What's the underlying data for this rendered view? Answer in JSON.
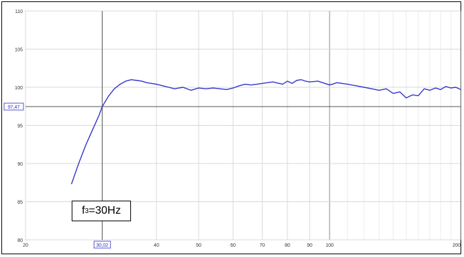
{
  "chart_data": {
    "type": "line",
    "title": "",
    "xlabel": "",
    "ylabel": "",
    "x_scale": "log",
    "xlim": [
      20,
      200
    ],
    "ylim": [
      80,
      110
    ],
    "grid": true,
    "x_ticks": [
      "20",
      "30,02",
      "40",
      "50",
      "60",
      "70",
      "80",
      "90",
      "100",
      "200"
    ],
    "y_ticks": [
      "80",
      "85",
      "90",
      "95",
      "97,47",
      "100",
      "105",
      "110"
    ],
    "cursor": {
      "x": 30.02,
      "y": 97.47,
      "x_label": "30,02",
      "y_label": "97,47"
    },
    "annotation": {
      "prefix": "f",
      "sub": "3",
      "text": "=30Hz"
    },
    "series": [
      {
        "color": "#3333cc",
        "x": [
          25.5,
          26.5,
          27.5,
          28.5,
          29.5,
          30.02,
          31,
          32,
          33,
          34,
          35,
          36,
          37,
          38,
          40,
          42,
          44,
          46,
          48,
          50,
          52,
          54,
          56,
          58,
          60,
          62,
          64,
          66,
          70,
          74,
          78,
          80,
          82,
          84,
          86,
          88,
          90,
          94,
          100,
          104,
          110,
          115,
          120,
          125,
          130,
          135,
          140,
          145,
          150,
          155,
          160,
          165,
          170,
          175,
          180,
          185,
          190,
          195,
          200
        ],
        "y": [
          87.3,
          90.0,
          92.4,
          94.4,
          96.3,
          97.47,
          98.8,
          99.8,
          100.4,
          100.8,
          101.0,
          100.9,
          100.8,
          100.6,
          100.4,
          100.1,
          99.8,
          100.0,
          99.6,
          99.9,
          99.8,
          99.9,
          99.8,
          99.7,
          99.9,
          100.2,
          100.4,
          100.3,
          100.5,
          100.7,
          100.4,
          100.8,
          100.5,
          100.9,
          101.0,
          100.8,
          100.7,
          100.8,
          100.3,
          100.6,
          100.4,
          100.2,
          100.0,
          99.8,
          99.6,
          99.8,
          99.2,
          99.4,
          98.6,
          99.0,
          98.9,
          99.8,
          99.6,
          99.9,
          99.7,
          100.1,
          99.9,
          100.0,
          99.7
        ]
      }
    ]
  }
}
